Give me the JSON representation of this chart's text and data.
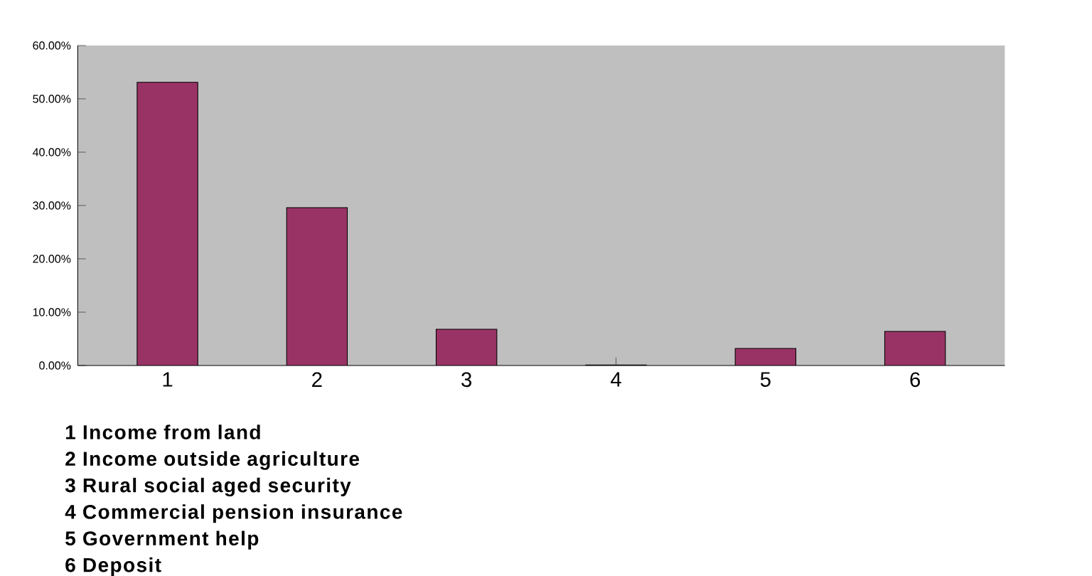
{
  "chart_data": {
    "type": "bar",
    "categories": [
      "1",
      "2",
      "3",
      "4",
      "5",
      "6"
    ],
    "values": [
      53.1,
      29.6,
      6.8,
      0.1,
      3.2,
      6.4
    ],
    "color": "#993366",
    "ylim": [
      0,
      60
    ],
    "yticks": [
      {
        "value": 0,
        "label": "0.00%"
      },
      {
        "value": 10,
        "label": "10.00%"
      },
      {
        "value": 20,
        "label": "20.00%"
      },
      {
        "value": 30,
        "label": "30.00%"
      },
      {
        "value": 40,
        "label": "40.00%"
      },
      {
        "value": 50,
        "label": "50.00%"
      },
      {
        "value": 60,
        "label": "60.00%"
      }
    ],
    "grid": false,
    "annotations": [
      "1 Income from land",
      "2 Income outside agriculture",
      "3 Rural social aged security",
      "4 Commercial pension insurance",
      "5 Government help",
      "6 Deposit"
    ]
  }
}
